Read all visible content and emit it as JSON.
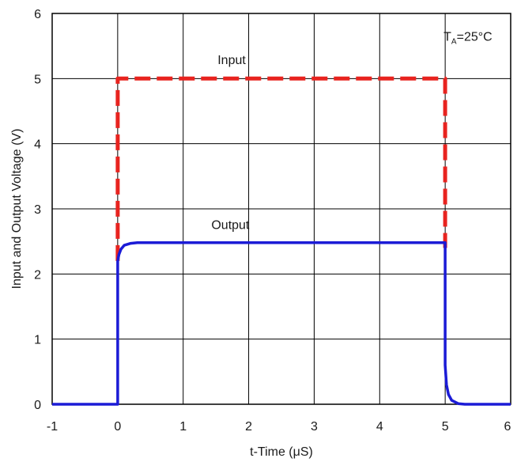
{
  "chart_data": {
    "type": "line",
    "title": "",
    "xlabel": "t-Time (μS)",
    "ylabel": "Input and Output Voltage (V)",
    "xlim": [
      -1,
      6
    ],
    "ylim": [
      0,
      6
    ],
    "x_ticks": [
      "-1",
      "0",
      "1",
      "2",
      "3",
      "4",
      "5",
      "6"
    ],
    "y_ticks": [
      "0",
      "1",
      "2",
      "3",
      "4",
      "5",
      "6"
    ],
    "grid": true,
    "annotation": {
      "prefix": "T",
      "subscript": "A",
      "suffix": "=25°C"
    },
    "series": [
      {
        "name": "Input",
        "color": "#e8231f",
        "style": "dashed",
        "x": [
          0,
          0,
          5,
          5
        ],
        "y": [
          2.2,
          5,
          5,
          2.4
        ]
      },
      {
        "name": "Output",
        "color": "#1b1bd6",
        "style": "solid",
        "x": [
          -1,
          0,
          0,
          0.02,
          0.05,
          0.1,
          0.2,
          0.3,
          1,
          2,
          3,
          4,
          5,
          5,
          5.02,
          5.05,
          5.1,
          5.2,
          5.3,
          6
        ],
        "y": [
          0,
          0,
          2.2,
          2.3,
          2.38,
          2.44,
          2.47,
          2.48,
          2.48,
          2.48,
          2.48,
          2.48,
          2.48,
          0.6,
          0.3,
          0.15,
          0.06,
          0.01,
          0,
          0
        ]
      }
    ]
  }
}
